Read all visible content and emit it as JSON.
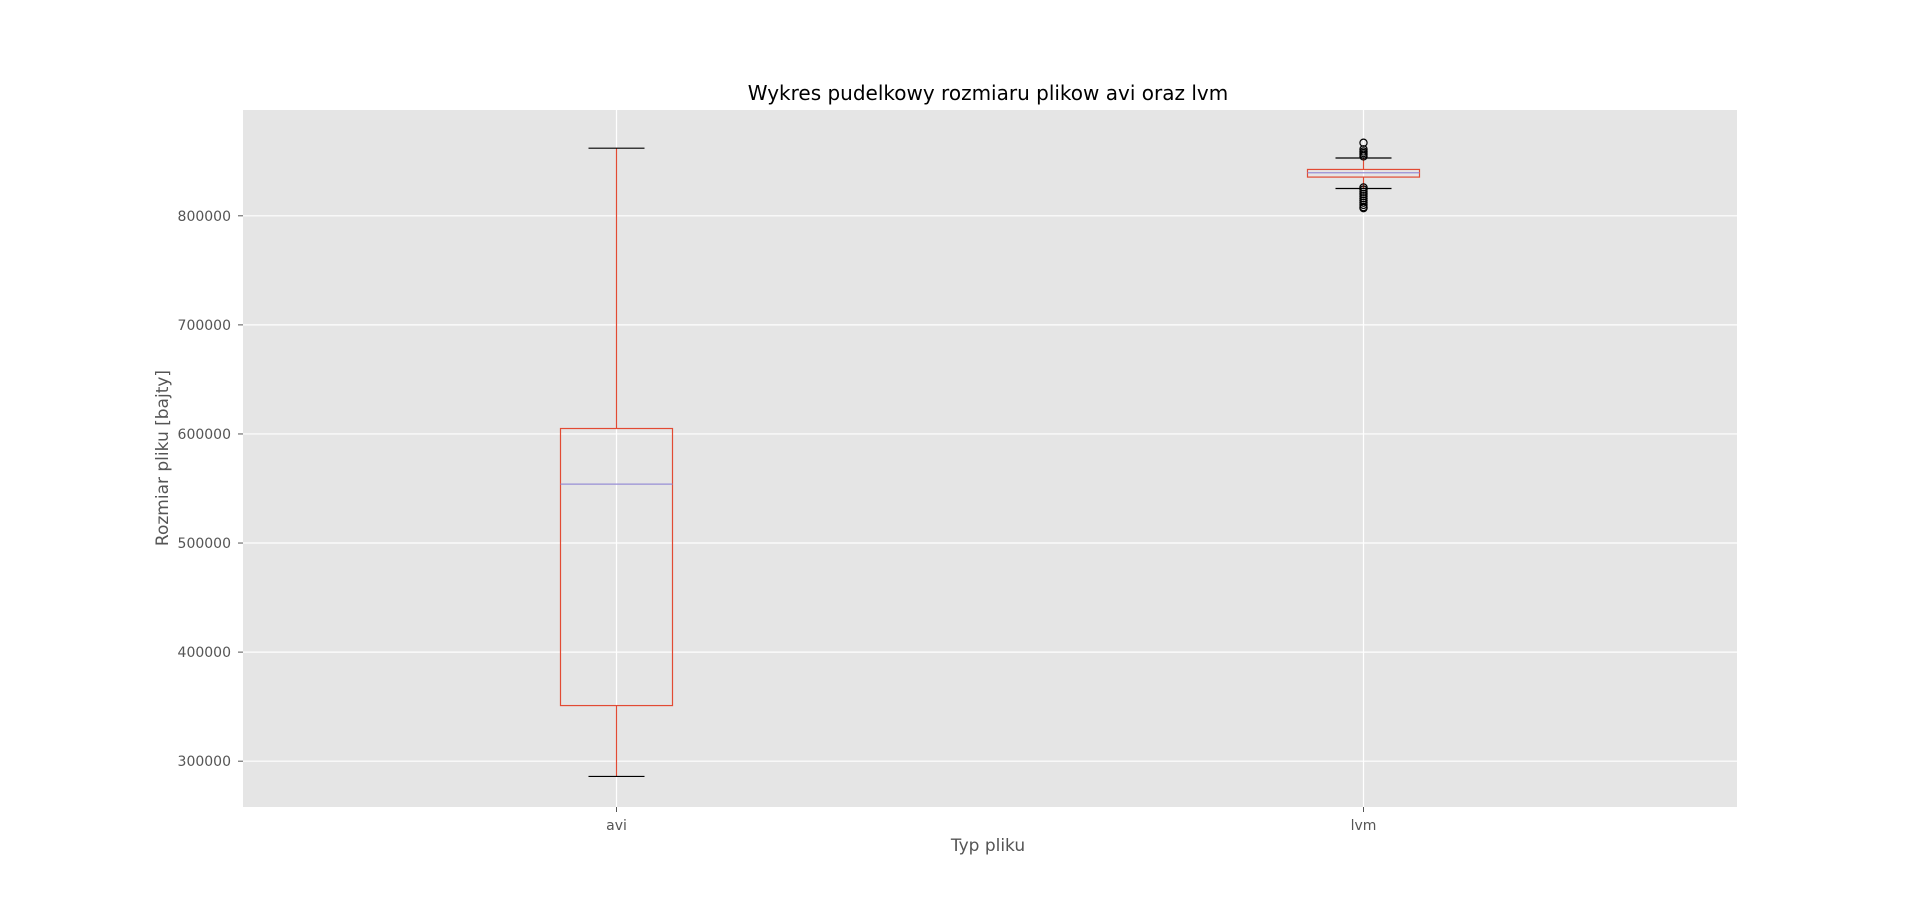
{
  "chart_data": {
    "type": "box",
    "title": "Wykres pudelkowy rozmiaru plikow avi oraz lvm",
    "xlabel": "Typ pliku",
    "ylabel": "Rozmiar pliku [bajty]",
    "ylim": [
      258000,
      897000
    ],
    "yticks": [
      300000,
      400000,
      500000,
      600000,
      700000,
      800000
    ],
    "ytick_labels": [
      "300000",
      "400000",
      "500000",
      "600000",
      "700000",
      "800000"
    ],
    "grid": true,
    "background_color": "#e5e5e5",
    "grid_color": "#ffffff",
    "box_color": "#e24a33",
    "median_color": "#988ed5",
    "whisker_cap_color": "#000000",
    "series": [
      {
        "name": "avi",
        "whisker_low": 286000,
        "q1": 351000,
        "median": 554000,
        "q3": 605000,
        "whisker_high": 862000,
        "outliers": []
      },
      {
        "name": "lvm",
        "whisker_low": 825000,
        "q1": 835500,
        "median": 839500,
        "q3": 842500,
        "whisker_high": 853000,
        "outliers": [
          867000,
          861000,
          859000,
          857500,
          856000,
          854500,
          826000,
          824000,
          822000,
          820000,
          818000,
          816000,
          814000,
          812000,
          810000,
          808000,
          807000
        ]
      }
    ]
  }
}
